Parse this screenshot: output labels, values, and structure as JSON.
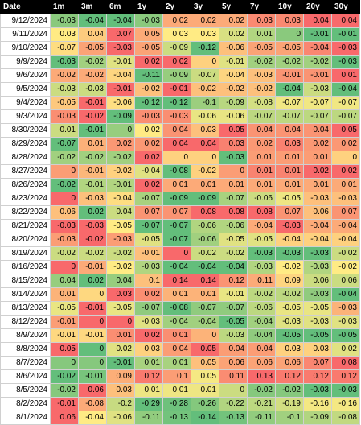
{
  "table": {
    "columns": [
      "Date",
      "1m",
      "3m",
      "6m",
      "1y",
      "2y",
      "3y",
      "5y",
      "7y",
      "10y",
      "20y",
      "30y"
    ],
    "rows": [
      {
        "date": "9/12/2024",
        "values": [
          "-0.03",
          "-0.04",
          "-0.04",
          "-0.03",
          "0.02",
          "0.02",
          "0.02",
          "0.03",
          "0.03",
          "0.04",
          "0.04"
        ]
      },
      {
        "date": "9/11/2024",
        "values": [
          "0.03",
          "0.04",
          "0.07",
          "0.05",
          "0.03",
          "0.03",
          "0.02",
          "0.01",
          "0",
          "-0.01",
          "-0.01"
        ]
      },
      {
        "date": "9/10/2024",
        "values": [
          "-0.07",
          "-0.05",
          "-0.03",
          "-0.05",
          "-0.09",
          "-0.12",
          "-0.06",
          "-0.05",
          "-0.05",
          "-0.04",
          "-0.03"
        ]
      },
      {
        "date": "9/9/2024",
        "values": [
          "-0.03",
          "-0.02",
          "-0.01",
          "0.02",
          "0.02",
          "0",
          "-0.01",
          "-0.02",
          "-0.02",
          "-0.02",
          "-0.03"
        ]
      },
      {
        "date": "9/6/2024",
        "values": [
          "-0.02",
          "-0.02",
          "-0.04",
          "-0.11",
          "-0.09",
          "-0.07",
          "-0.04",
          "-0.03",
          "-0.01",
          "-0.01",
          "0.01"
        ]
      },
      {
        "date": "9/5/2024",
        "values": [
          "-0.03",
          "-0.03",
          "-0.01",
          "-0.02",
          "-0.01",
          "-0.02",
          "-0.02",
          "-0.02",
          "-0.04",
          "-0.03",
          "-0.04"
        ]
      },
      {
        "date": "9/4/2024",
        "values": [
          "-0.05",
          "-0.01",
          "-0.06",
          "-0.12",
          "-0.12",
          "-0.1",
          "-0.09",
          "-0.08",
          "-0.07",
          "-0.07",
          "-0.07"
        ]
      },
      {
        "date": "9/3/2024",
        "values": [
          "-0.03",
          "-0.02",
          "-0.09",
          "-0.03",
          "-0.03",
          "-0.06",
          "-0.06",
          "-0.07",
          "-0.07",
          "-0.07",
          "-0.07"
        ]
      },
      {
        "date": "8/30/2024",
        "values": [
          "0.01",
          "-0.01",
          "0",
          "0.02",
          "0.04",
          "0.03",
          "0.05",
          "0.04",
          "0.04",
          "0.04",
          "0.05"
        ]
      },
      {
        "date": "8/29/2024",
        "values": [
          "-0.07",
          "0.01",
          "0.02",
          "0.02",
          "0.04",
          "0.04",
          "0.03",
          "0.02",
          "0.03",
          "0.02",
          "0.02"
        ]
      },
      {
        "date": "8/28/2024",
        "values": [
          "-0.02",
          "-0.02",
          "-0.02",
          "0.02",
          "0",
          "0",
          "-0.03",
          "0.01",
          "0.01",
          "0.01",
          "0"
        ]
      },
      {
        "date": "8/27/2024",
        "values": [
          "0",
          "-0.01",
          "-0.02",
          "-0.04",
          "-0.08",
          "-0.02",
          "0",
          "0.01",
          "0.01",
          "0.02",
          "0.02"
        ]
      },
      {
        "date": "8/26/2024",
        "values": [
          "-0.02",
          "-0.01",
          "-0.01",
          "0.02",
          "0.01",
          "0.01",
          "0.01",
          "0.01",
          "0.01",
          "0.01",
          "0.01"
        ]
      },
      {
        "date": "8/23/2024",
        "values": [
          "0",
          "-0.03",
          "-0.04",
          "-0.07",
          "-0.09",
          "-0.09",
          "-0.07",
          "-0.06",
          "-0.05",
          "-0.03",
          "-0.03"
        ]
      },
      {
        "date": "8/22/2024",
        "values": [
          "0.06",
          "0.02",
          "0.04",
          "0.07",
          "0.07",
          "0.08",
          "0.08",
          "0.08",
          "0.07",
          "0.06",
          "0.07"
        ]
      },
      {
        "date": "8/21/2024",
        "values": [
          "-0.03",
          "-0.03",
          "-0.05",
          "-0.07",
          "-0.07",
          "-0.06",
          "-0.06",
          "-0.04",
          "-0.03",
          "-0.04",
          "-0.04"
        ]
      },
      {
        "date": "8/20/2024",
        "values": [
          "-0.03",
          "-0.02",
          "-0.03",
          "-0.05",
          "-0.07",
          "-0.06",
          "-0.05",
          "-0.05",
          "-0.04",
          "-0.04",
          "-0.04"
        ]
      },
      {
        "date": "8/19/2024",
        "values": [
          "-0.02",
          "-0.02",
          "-0.02",
          "-0.01",
          "0",
          "-0.02",
          "-0.02",
          "-0.03",
          "-0.03",
          "-0.03",
          "-0.02"
        ]
      },
      {
        "date": "8/16/2024",
        "values": [
          "0",
          "-0.01",
          "-0.02",
          "-0.03",
          "-0.04",
          "-0.04",
          "-0.04",
          "-0.03",
          "-0.02",
          "-0.03",
          "-0.02"
        ]
      },
      {
        "date": "8/15/2024",
        "values": [
          "0.04",
          "0.02",
          "0.04",
          "0.1",
          "0.14",
          "0.14",
          "0.12",
          "0.11",
          "0.09",
          "0.06",
          "0.06"
        ]
      },
      {
        "date": "8/14/2024",
        "values": [
          "0.01",
          "0",
          "0.03",
          "0.02",
          "0.01",
          "0.01",
          "-0.01",
          "-0.02",
          "-0.02",
          "-0.03",
          "-0.04"
        ]
      },
      {
        "date": "8/13/2024",
        "values": [
          "-0.05",
          "-0.01",
          "-0.05",
          "-0.07",
          "-0.08",
          "-0.07",
          "-0.07",
          "-0.06",
          "-0.05",
          "-0.05",
          "-0.03"
        ]
      },
      {
        "date": "8/12/2024",
        "values": [
          "-0.01",
          "0",
          "0",
          "-0.03",
          "-0.04",
          "-0.04",
          "-0.05",
          "-0.04",
          "-0.03",
          "-0.03",
          "-0.03"
        ]
      },
      {
        "date": "8/9/2024",
        "values": [
          "-0.01",
          "-0.01",
          "0.01",
          "0.02",
          "0.01",
          "0",
          "-0.03",
          "-0.04",
          "-0.05",
          "-0.05",
          "-0.05"
        ]
      },
      {
        "date": "8/8/2024",
        "values": [
          "0.05",
          "0",
          "0.02",
          "0.03",
          "0.04",
          "0.05",
          "0.04",
          "0.04",
          "0.03",
          "0.03",
          "0.02"
        ]
      },
      {
        "date": "8/7/2024",
        "values": [
          "0",
          "0",
          "-0.01",
          "0.01",
          "0.01",
          "0.05",
          "0.06",
          "0.06",
          "0.06",
          "0.07",
          "0.08"
        ]
      },
      {
        "date": "8/6/2024",
        "values": [
          "-0.02",
          "-0.01",
          "0.09",
          "0.12",
          "0.1",
          "0.05",
          "0.11",
          "0.13",
          "0.12",
          "0.12",
          "0.12"
        ]
      },
      {
        "date": "8/5/2024",
        "values": [
          "-0.02",
          "0.06",
          "0.03",
          "0.01",
          "0.01",
          "0.01",
          "0",
          "-0.02",
          "-0.02",
          "-0.03",
          "-0.03"
        ]
      },
      {
        "date": "8/2/2024",
        "values": [
          "-0.01",
          "-0.08",
          "-0.2",
          "-0.29",
          "-0.28",
          "-0.26",
          "-0.22",
          "-0.21",
          "-0.19",
          "-0.16",
          "-0.16"
        ]
      },
      {
        "date": "8/1/2024",
        "values": [
          "0.06",
          "-0.04",
          "-0.06",
          "-0.11",
          "-0.13",
          "-0.14",
          "-0.13",
          "-0.11",
          "-0.1",
          "-0.09",
          "-0.08"
        ]
      }
    ]
  },
  "colors": {
    "header_bg": "#000000",
    "header_text": "#ffffff",
    "scale_low": "#63be7b",
    "scale_mid": "#ffeb84",
    "scale_high": "#f8696b",
    "date_bg": "#ffffff"
  }
}
